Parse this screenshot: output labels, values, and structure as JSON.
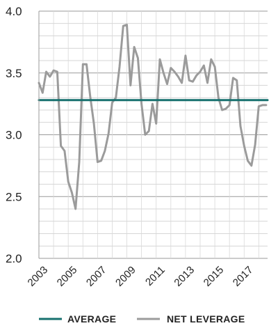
{
  "chart_data": {
    "type": "line",
    "title": "",
    "xlabel": "",
    "ylabel": "",
    "xlim": [
      2003.0,
      2018.6
    ],
    "ylim": [
      2.0,
      4.0
    ],
    "yticks": [
      "2.0",
      "2.5",
      "3.0",
      "3.5",
      "4.0"
    ],
    "xticks": [
      "2003",
      "2005",
      "2007",
      "2009",
      "2011",
      "2013",
      "2015",
      "2017"
    ],
    "grid": true,
    "legend_position": "bottom",
    "series": [
      {
        "name": "AVERAGE",
        "color": "#17706e",
        "x": [
          2003.0,
          2018.6
        ],
        "y": [
          3.28,
          3.28
        ]
      },
      {
        "name": "NET LEVERAGE",
        "color": "#9b9b9b",
        "x": [
          2003.0,
          2003.25,
          2003.5,
          2003.75,
          2004.0,
          2004.25,
          2004.5,
          2004.75,
          2005.0,
          2005.25,
          2005.5,
          2005.75,
          2006.0,
          2006.25,
          2006.5,
          2006.75,
          2007.0,
          2007.25,
          2007.5,
          2007.75,
          2008.0,
          2008.25,
          2008.5,
          2008.75,
          2009.0,
          2009.25,
          2009.5,
          2009.75,
          2010.0,
          2010.25,
          2010.5,
          2010.75,
          2011.0,
          2011.25,
          2011.5,
          2011.75,
          2012.0,
          2012.25,
          2012.5,
          2012.75,
          2013.0,
          2013.25,
          2013.5,
          2013.75,
          2014.0,
          2014.25,
          2014.5,
          2014.75,
          2015.0,
          2015.25,
          2015.5,
          2015.75,
          2016.0,
          2016.25,
          2016.5,
          2016.75,
          2017.0,
          2017.25,
          2017.5,
          2017.75,
          2018.0,
          2018.25,
          2018.5
        ],
        "y": [
          3.42,
          3.34,
          3.51,
          3.47,
          3.52,
          3.51,
          2.91,
          2.87,
          2.62,
          2.53,
          2.4,
          2.78,
          3.57,
          3.57,
          3.31,
          3.09,
          2.78,
          2.79,
          2.87,
          3.01,
          3.26,
          3.3,
          3.55,
          3.88,
          3.89,
          3.4,
          3.71,
          3.62,
          3.25,
          3.0,
          3.03,
          3.25,
          3.09,
          3.61,
          3.5,
          3.41,
          3.54,
          3.51,
          3.47,
          3.42,
          3.64,
          3.44,
          3.43,
          3.48,
          3.51,
          3.56,
          3.42,
          3.61,
          3.55,
          3.3,
          3.2,
          3.21,
          3.24,
          3.46,
          3.44,
          3.07,
          2.91,
          2.79,
          2.75,
          2.92,
          3.23,
          3.24,
          3.24
        ]
      }
    ]
  }
}
